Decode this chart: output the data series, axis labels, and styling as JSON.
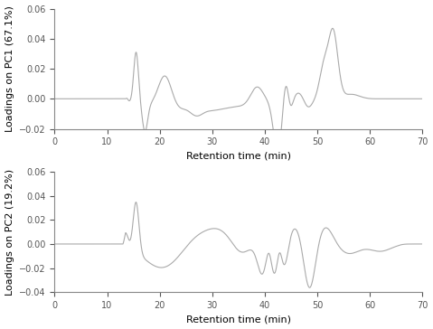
{
  "title": "",
  "subplot1_ylabel": "Loadings on PC1 (67.1%)",
  "subplot2_ylabel": "Loadings on PC2 (19.2%)",
  "xlabel": "Retention time (min)",
  "xlim": [
    0,
    70
  ],
  "pc1_ylim": [
    -0.02,
    0.06
  ],
  "pc2_ylim": [
    -0.04,
    0.06
  ],
  "pc1_yticks": [
    -0.02,
    0,
    0.02,
    0.04,
    0.06
  ],
  "pc2_yticks": [
    -0.04,
    -0.02,
    0,
    0.02,
    0.04,
    0.06
  ],
  "xticks": [
    0,
    10,
    20,
    30,
    40,
    50,
    60,
    70
  ],
  "line_color": "#aaaaaa",
  "line_width": 0.8,
  "background_color": "#ffffff",
  "tick_fontsize": 7,
  "label_fontsize": 8
}
